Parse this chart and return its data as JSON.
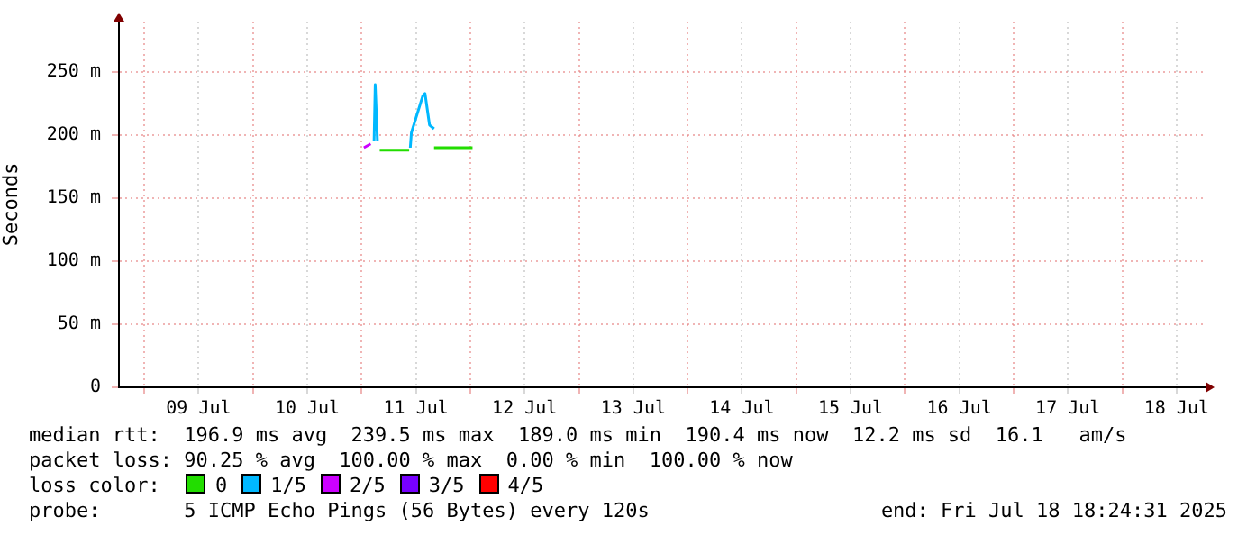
{
  "chart_data": {
    "type": "line",
    "ylabel": "Seconds",
    "xlim": [
      "2025-07-08T18:24",
      "2025-07-18T18:24"
    ],
    "xticks": [
      {
        "value": "2025-07-09T00:00",
        "label": null
      },
      {
        "value": "2025-07-09T12:00",
        "label": "09 Jul"
      },
      {
        "value": "2025-07-10T00:00",
        "label": null
      },
      {
        "value": "2025-07-10T12:00",
        "label": "10 Jul"
      },
      {
        "value": "2025-07-11T00:00",
        "label": null
      },
      {
        "value": "2025-07-11T12:00",
        "label": "11 Jul"
      },
      {
        "value": "2025-07-12T00:00",
        "label": null
      },
      {
        "value": "2025-07-12T12:00",
        "label": "12 Jul"
      },
      {
        "value": "2025-07-13T00:00",
        "label": null
      },
      {
        "value": "2025-07-13T12:00",
        "label": "13 Jul"
      },
      {
        "value": "2025-07-14T00:00",
        "label": null
      },
      {
        "value": "2025-07-14T12:00",
        "label": "14 Jul"
      },
      {
        "value": "2025-07-15T00:00",
        "label": null
      },
      {
        "value": "2025-07-15T12:00",
        "label": "15 Jul"
      },
      {
        "value": "2025-07-16T00:00",
        "label": null
      },
      {
        "value": "2025-07-16T12:00",
        "label": "16 Jul"
      },
      {
        "value": "2025-07-17T00:00",
        "label": null
      },
      {
        "value": "2025-07-17T12:00",
        "label": "17 Jul"
      },
      {
        "value": "2025-07-18T00:00",
        "label": null
      },
      {
        "value": "2025-07-18T12:00",
        "label": "18 Jul"
      }
    ],
    "ylim": [
      0,
      290
    ],
    "yticks": [
      {
        "value": 0,
        "label": "0"
      },
      {
        "value": 50,
        "label": "50 m"
      },
      {
        "value": 100,
        "label": "100 m"
      },
      {
        "value": 150,
        "label": "150 m"
      },
      {
        "value": 200,
        "label": "200 m"
      },
      {
        "value": 250,
        "label": "250 m"
      }
    ],
    "grid": true,
    "legend": "bottom",
    "legend_title": "loss color:",
    "marker": "none",
    "series": [
      {
        "name": "0",
        "color": "#22dd00",
        "x": [
          "2025-07-11T04:00",
          "2025-07-11T10:30",
          "2025-07-11T13:00",
          "2025-07-11T16:00",
          "2025-07-12T00:30"
        ],
        "values": [
          188,
          188,
          null,
          190,
          190
        ]
      },
      {
        "name": "1/5",
        "color": "#00b8ff",
        "x": [
          "2025-07-11T02:45",
          "2025-07-11T03:00",
          "2025-07-11T03:30",
          "2025-07-11T07:00",
          "2025-07-11T10:45",
          "2025-07-11T11:00",
          "2025-07-11T13:30",
          "2025-07-11T14:00",
          "2025-07-11T15:00",
          "2025-07-11T16:00"
        ],
        "values": [
          195,
          240,
          195,
          null,
          190,
          202,
          231,
          233,
          208,
          205
        ]
      },
      {
        "name": "2/5",
        "color": "#cc00ff",
        "x": [
          "2025-07-11T00:30",
          "2025-07-11T02:00"
        ],
        "values": [
          190,
          193
        ]
      },
      {
        "name": "3/5",
        "color": "#7700ff"
      },
      {
        "name": "4/5",
        "color": "#ff0000"
      }
    ],
    "annotations": [
      "median rtt:  196.9 ms avg  239.5 ms max  189.0 ms min  190.4 ms now  12.2 ms sd  16.1   am/s",
      "packet loss: 90.25 % avg  100.00 % max  0.00 % min  100.00 % now",
      "probe:       5 ICMP Echo Pings (56 Bytes) every 120s",
      "end: Fri Jul 18 18:24:31 2025"
    ]
  }
}
